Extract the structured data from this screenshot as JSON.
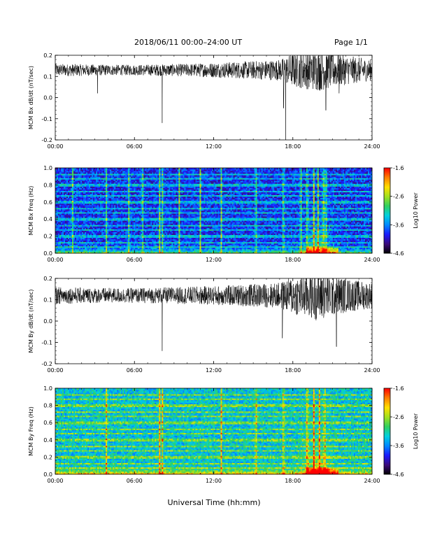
{
  "header": {
    "title": "2018/06/11   00:00–24:00 UT",
    "page": "Page 1/1"
  },
  "xlabel": "Universal Time (hh:mm)",
  "colors": {
    "trace": "#000000",
    "colormap": [
      "#000000",
      "#3b0a7a",
      "#1a1aff",
      "#0088ff",
      "#00d0e0",
      "#2fd060",
      "#a0e020",
      "#ffe000",
      "#ff8000",
      "#ff0000"
    ]
  },
  "chart_data": [
    {
      "type": "line",
      "ylabel": "MCM Bx dB/dt (nT/sec)",
      "xlim": [
        0,
        24
      ],
      "ylim": [
        -0.2,
        0.2
      ],
      "x_ticks": [
        "00:00",
        "06:00",
        "12:00",
        "18:00",
        "24:00"
      ],
      "y_ticks": [
        "-0.2",
        "-0.1",
        "0.0",
        "0.1",
        "0.2"
      ],
      "baseline": 0.13,
      "noise_profile": [
        [
          0,
          0.03
        ],
        [
          4,
          0.025
        ],
        [
          6,
          0.025
        ],
        [
          10,
          0.03
        ],
        [
          14,
          0.04
        ],
        [
          17,
          0.05
        ],
        [
          18,
          0.08
        ],
        [
          20,
          0.1
        ],
        [
          22,
          0.07
        ],
        [
          24,
          0.05
        ]
      ],
      "spikes": [
        [
          3.2,
          0.02
        ],
        [
          8.1,
          -0.12
        ],
        [
          17.3,
          -0.05
        ],
        [
          17.45,
          -0.2
        ],
        [
          20.5,
          -0.06
        ],
        [
          21.5,
          0.02
        ]
      ]
    },
    {
      "type": "heatmap",
      "ylabel": "MCM Bx Freq (Hz)",
      "xlim": [
        0,
        24
      ],
      "ylim": [
        0,
        1.0
      ],
      "x_ticks": [
        "00:00",
        "06:00",
        "12:00",
        "18:00",
        "24:00"
      ],
      "y_ticks": [
        "0.0",
        "0.2",
        "0.4",
        "0.6",
        "0.8",
        "1.0"
      ],
      "colorbar": {
        "label": "Log10 Power",
        "ticks": [
          "-1.6",
          "-2.6",
          "-3.6",
          "-4.6"
        ],
        "range": [
          -4.6,
          -1.6
        ]
      },
      "background_level": -3.9,
      "band_freqs": [
        0.07,
        0.13,
        0.2,
        0.27,
        0.33,
        0.4,
        0.47,
        0.53,
        0.6,
        0.67,
        0.73,
        0.8,
        0.87,
        0.93
      ],
      "bursts": [
        1.3,
        3.9,
        5.6,
        6.6,
        7.9,
        8.1,
        9.4,
        11.0,
        12.6,
        15.2,
        17.3,
        18.6,
        19.1,
        19.6,
        19.9,
        20.3,
        20.5
      ]
    },
    {
      "type": "line",
      "ylabel": "MCM By dB/dt (nT/sec)",
      "xlim": [
        0,
        24
      ],
      "ylim": [
        -0.2,
        0.2
      ],
      "x_ticks": [
        "00:00",
        "06:00",
        "12:00",
        "18:00",
        "24:00"
      ],
      "y_ticks": [
        "-0.2",
        "-0.1",
        "0.0",
        "0.1",
        "0.2"
      ],
      "baseline": 0.12,
      "noise_profile": [
        [
          0,
          0.04
        ],
        [
          4,
          0.035
        ],
        [
          6,
          0.035
        ],
        [
          10,
          0.04
        ],
        [
          14,
          0.05
        ],
        [
          17,
          0.06
        ],
        [
          18,
          0.09
        ],
        [
          20,
          0.12
        ],
        [
          22,
          0.08
        ],
        [
          24,
          0.06
        ]
      ],
      "spikes": [
        [
          8.1,
          -0.14
        ],
        [
          17.2,
          -0.08
        ],
        [
          21.3,
          -0.12
        ]
      ]
    },
    {
      "type": "heatmap",
      "ylabel": "MCM By Freq (Hz)",
      "xlim": [
        0,
        24
      ],
      "ylim": [
        0,
        1.0
      ],
      "x_ticks": [
        "00:00",
        "06:00",
        "12:00",
        "18:00",
        "24:00"
      ],
      "y_ticks": [
        "0.0",
        "0.2",
        "0.4",
        "0.6",
        "0.8",
        "1.0"
      ],
      "colorbar": {
        "label": "Log10 Power",
        "ticks": [
          "-1.6",
          "-2.6",
          "-3.6",
          "-4.6"
        ],
        "range": [
          -4.6,
          -1.6
        ]
      },
      "background_level": -3.3,
      "band_freqs": [
        0.07,
        0.13,
        0.2,
        0.27,
        0.33,
        0.4,
        0.47,
        0.53,
        0.6,
        0.67,
        0.73,
        0.8,
        0.87,
        0.93
      ],
      "bursts": [
        3.9,
        7.9,
        8.1,
        12.6,
        15.2,
        17.3,
        19.1,
        19.6,
        20.0,
        20.4
      ]
    }
  ]
}
